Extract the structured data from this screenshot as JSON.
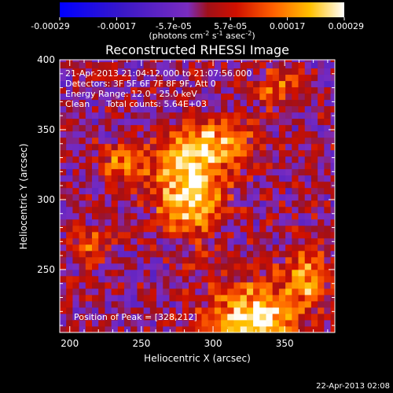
{
  "chart_data": {
    "type": "heatmap",
    "title": "Reconstructed RHESSI Image",
    "xlabel": "Heliocentric X (arcsec)",
    "ylabel": "Heliocentric Y (arcsec)",
    "xlim": [
      193,
      385
    ],
    "ylim": [
      205,
      400
    ],
    "x_ticks": [
      200,
      250,
      300,
      350
    ],
    "y_ticks": [
      250,
      300,
      350,
      400
    ],
    "grid": false,
    "colorbar": {
      "colormap": "blue-purple-red-orange-yellow-white",
      "range": [
        -0.00029,
        0.00029
      ],
      "tick_labels": [
        "-0.00029",
        "-0.00017",
        "-5.7e-05",
        "5.7e-05",
        "0.00017",
        "0.00029"
      ],
      "label": {
        "main": "(photons cm",
        "exp1": "-2",
        "mid": " s",
        "exp2": "-1",
        "mid2": " asec",
        "exp3": "-2",
        "end": ")"
      }
    },
    "annotations": [
      "21-Apr-2013 21:04:12.000 to 21:07:56.000",
      "Detectors: 3F 5F 6F 7F 8F 9F, Att 0",
      "Energy Range: 12.0 - 25.0 keV",
      "Clean      Total counts: 5.64E+03"
    ],
    "peak_label": "Position of Peak = [328,212]",
    "sources": [
      {
        "x": 283,
        "y": 305,
        "sx": 16,
        "sy": 20,
        "amp": 0.00029
      },
      {
        "x": 300,
        "y": 340,
        "sx": 18,
        "sy": 12,
        "amp": 0.00021
      },
      {
        "x": 240,
        "y": 325,
        "sx": 14,
        "sy": 10,
        "amp": 0.00016
      },
      {
        "x": 328,
        "y": 212,
        "sx": 22,
        "sy": 20,
        "amp": 0.00029
      },
      {
        "x": 365,
        "y": 245,
        "sx": 10,
        "sy": 14,
        "amp": 0.00018
      },
      {
        "x": 215,
        "y": 265,
        "sx": 9,
        "sy": 12,
        "amp": 0.00012
      },
      {
        "x": 345,
        "y": 380,
        "sx": 12,
        "sy": 10,
        "amp": 0.00012
      }
    ]
  },
  "footer": {
    "timestamp": "22-Apr-2013 02:08"
  }
}
